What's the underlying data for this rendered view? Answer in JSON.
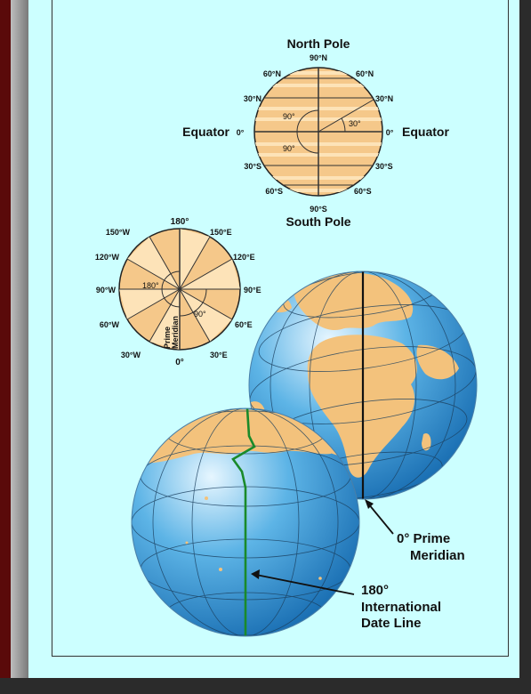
{
  "latitude_diagram": {
    "title_top": "North Pole",
    "title_bottom": "South Pole",
    "pole_north": "90°N",
    "pole_south": "90°S",
    "left_labels": [
      "60°N",
      "30°N",
      "30°S",
      "60°S"
    ],
    "right_labels": [
      "60°N",
      "30°N",
      "30°S",
      "60°S"
    ],
    "equator_left": "Equator",
    "equator_left_deg": "0°",
    "equator_right_deg": "0°",
    "equator_right": "Equator",
    "angle_upper": "90°",
    "angle_lower": "90°",
    "angle_small": "30°"
  },
  "longitude_diagram": {
    "top": "180°",
    "left_labels": [
      "150°W",
      "120°W",
      "90°W",
      "60°W",
      "30°W"
    ],
    "right_labels": [
      "150°E",
      "120°E",
      "90°E",
      "60°E",
      "30°E"
    ],
    "bottom": "0°",
    "angle_large": "180°",
    "angle_small": "90°",
    "prime_label_1": "Prime",
    "prime_label_2": "Meridian"
  },
  "globe_labels": {
    "prime_meridian_1": "0° Prime",
    "prime_meridian_2": "Meridian",
    "date_line_1": "180°",
    "date_line_2": "International",
    "date_line_3": "Date Line"
  },
  "colors": {
    "page": "#ccffff",
    "disc_fill": "#f5c88a",
    "ocean": "#2f8fd0",
    "land": "#f3c27c",
    "date_line": "#1a8a2a"
  }
}
